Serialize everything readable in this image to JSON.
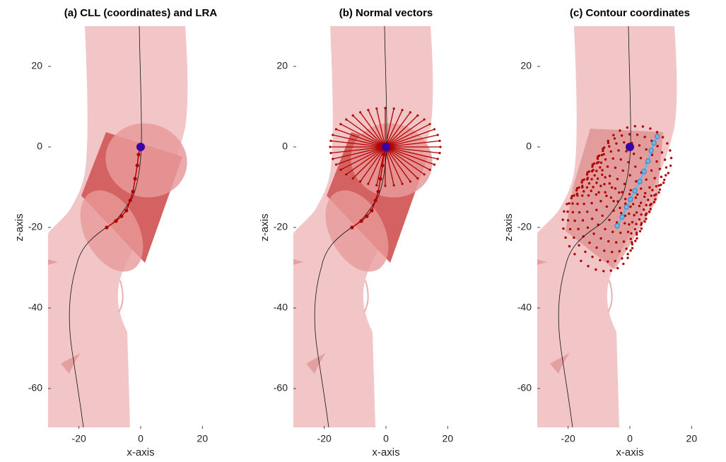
{
  "chart_data": [
    {
      "type": "scatter",
      "title": "(a) CLL (coordinates) and LRA",
      "xlabel": "x-axis",
      "ylabel": "z-axis",
      "xlim": [
        -30,
        30
      ],
      "ylim": [
        -70,
        30
      ],
      "xticks": [
        -20,
        0,
        20
      ],
      "yticks": [
        -60,
        -40,
        -20,
        0,
        20
      ],
      "series": [
        {
          "color": "#b00000",
          "x": [
            0,
            -0.7,
            -1.1,
            -1.8,
            -2.5,
            -3.4,
            -4.6,
            -6.2,
            -8,
            -11
          ],
          "values": [
            0,
            -1.9,
            -4.6,
            -7.9,
            -11.1,
            -13.3,
            -15.8,
            -17.2,
            -18.4,
            -20
          ]
        },
        {
          "color": "#3a00a8",
          "x": [
            0
          ],
          "values": [
            0
          ]
        }
      ]
    },
    {
      "type": "scatter",
      "title": "(b) Normal vectors",
      "xlabel": "x-axis",
      "ylabel": "z-axis",
      "xlim": [
        -30,
        30
      ],
      "ylim": [
        -70,
        30
      ],
      "xticks": [
        -20,
        0,
        20
      ],
      "yticks": [
        -60,
        -40,
        -20,
        0,
        20
      ],
      "series": [
        {
          "color": "#b00000",
          "x": [
            0,
            -0.7,
            -1.1,
            -1.8,
            -2.5,
            -3.4,
            -4.6,
            -6.2,
            -8,
            -11
          ],
          "values": [
            0,
            -1.9,
            -4.6,
            -7.9,
            -11.1,
            -13.3,
            -15.8,
            -17.2,
            -18.4,
            -20
          ]
        },
        {
          "color": "#3a00a8",
          "x": [
            0
          ],
          "values": [
            0
          ]
        }
      ]
    },
    {
      "type": "scatter",
      "title": "(c) Contour coordinates",
      "xlabel": "x-axis",
      "ylabel": "z-axis",
      "xlim": [
        -30,
        30
      ],
      "ylim": [
        -70,
        30
      ],
      "xticks": [
        -20,
        0,
        20
      ],
      "yticks": [
        -60,
        -40,
        -20,
        0,
        20
      ],
      "series": [
        {
          "color": "#3a00a8",
          "x": [
            0
          ],
          "values": [
            0
          ]
        },
        {
          "color": "#6fb6e8",
          "x": [
            -4.1,
            -2.5,
            -1.1,
            0.2,
            1.6,
            3.2,
            4.6,
            5.9,
            6.9,
            7.8,
            8.9
          ],
          "values": [
            -19.6,
            -17.4,
            -14.9,
            -13,
            -10.9,
            -8.6,
            -6.1,
            -3.5,
            -0.9,
            1.0,
            2.6
          ]
        }
      ]
    }
  ]
}
